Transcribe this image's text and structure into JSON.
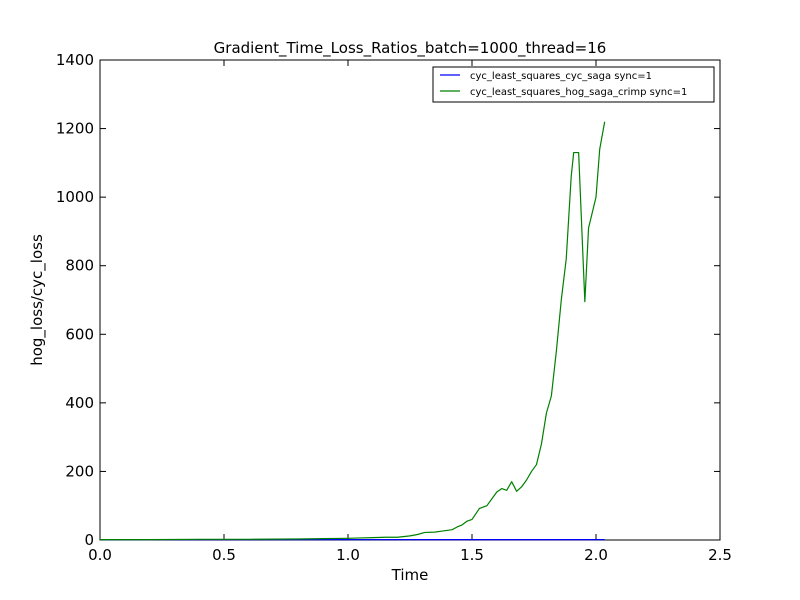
{
  "chart_data": {
    "type": "line",
    "title": "Gradient_Time_Loss_Ratios_batch=1000_thread=16",
    "xlabel": "Time",
    "ylabel": "hog_loss/cyc_loss",
    "xlim": [
      0.0,
      2.5
    ],
    "ylim": [
      0,
      1400
    ],
    "xticks": [
      "0.0",
      "0.5",
      "1.0",
      "1.5",
      "2.0",
      "2.5"
    ],
    "yticks": [
      "0",
      "200",
      "400",
      "600",
      "800",
      "1000",
      "1200",
      "1400"
    ],
    "grid": false,
    "legend_position": "top-right",
    "x": [
      0.0,
      0.2,
      0.4,
      0.6,
      0.8,
      0.9,
      1.0,
      1.05,
      1.1,
      1.15,
      1.2,
      1.25,
      1.28,
      1.31,
      1.35,
      1.38,
      1.42,
      1.44,
      1.46,
      1.48,
      1.5,
      1.53,
      1.56,
      1.58,
      1.6,
      1.62,
      1.64,
      1.66,
      1.68,
      1.7,
      1.72,
      1.74,
      1.76,
      1.78,
      1.8,
      1.82,
      1.84,
      1.86,
      1.88,
      1.9,
      1.91,
      1.93,
      1.955,
      1.97,
      2.0,
      2.015,
      2.035
    ],
    "series": [
      {
        "name": "cyc_least_squares_cyc_saga sync=1",
        "color": "#0000ff",
        "values": [
          1,
          1,
          1,
          1,
          1,
          1,
          1,
          1,
          1,
          1,
          1,
          1,
          1,
          1,
          1,
          1,
          1,
          1,
          1,
          1,
          1,
          1,
          1,
          1,
          1,
          1,
          1,
          1,
          1,
          1,
          1,
          1,
          1,
          1,
          1,
          1,
          1,
          1,
          1,
          1,
          1,
          1,
          1,
          1,
          1,
          1,
          1
        ]
      },
      {
        "name": "cyc_least_squares_hog_saga_crimp sync=1",
        "color": "#008000",
        "values": [
          1,
          1,
          2,
          2,
          3,
          4,
          5,
          6,
          7,
          8,
          8,
          12,
          16,
          22,
          23,
          26,
          30,
          38,
          44,
          55,
          60,
          92,
          100,
          120,
          140,
          150,
          145,
          170,
          142,
          155,
          175,
          200,
          220,
          280,
          370,
          420,
          550,
          700,
          820,
          1060,
          1130,
          1130,
          695,
          910,
          1000,
          1140,
          1220
        ]
      }
    ]
  }
}
